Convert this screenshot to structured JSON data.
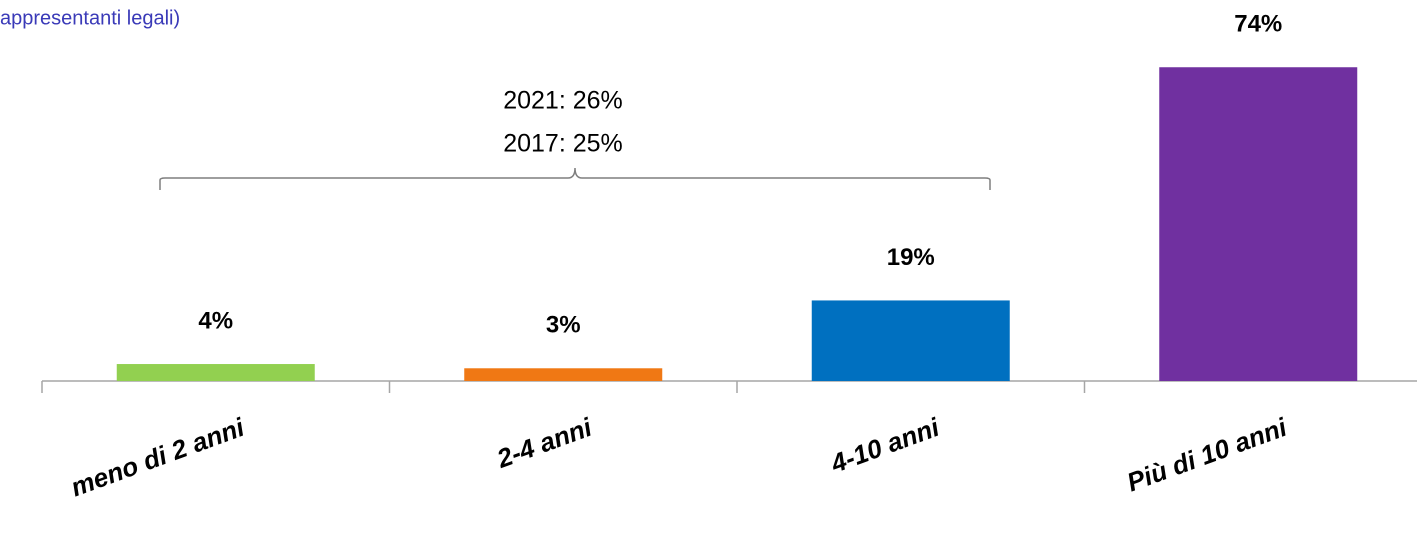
{
  "chart_data": {
    "type": "bar",
    "title": "appresentanti legali)",
    "categories": [
      "meno di 2 anni",
      "2-4 anni",
      "4-10 anni",
      "Più di 10 anni"
    ],
    "values": [
      4,
      3,
      19,
      74
    ],
    "value_labels": [
      "4%",
      "3%",
      "19%",
      "74%"
    ],
    "colors": [
      "#92d050",
      "#f07814",
      "#0070c0",
      "#7030a0"
    ],
    "annotations": [
      "2021: 26%",
      "2017: 25%"
    ]
  }
}
